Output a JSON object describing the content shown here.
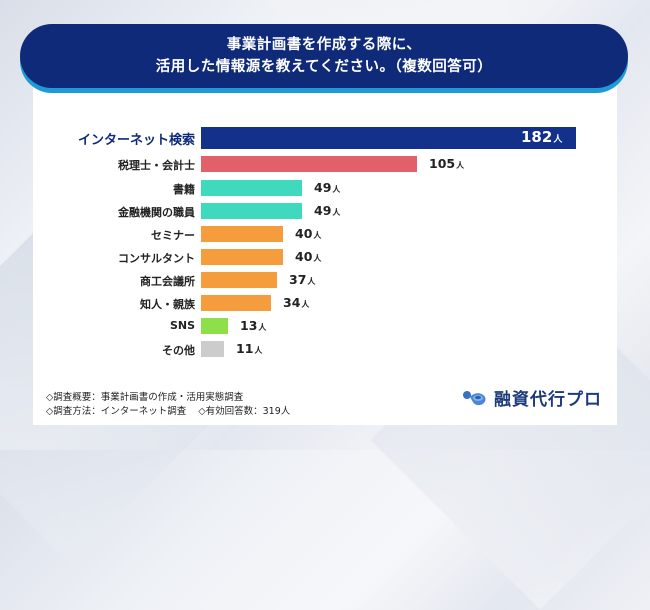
{
  "header": {
    "line1": "事業計画書を作成する際に、",
    "line2": "活用した情報源を教えてください。（複数回答可）"
  },
  "chart_data": {
    "type": "bar",
    "orientation": "horizontal",
    "title": "事業計画書を作成する際に、活用した情報源を教えてください。（複数回答可）",
    "categories": [
      "インターネット検索",
      "税理士・会計士",
      "書籍",
      "金融機関の職員",
      "セミナー",
      "コンサルタント",
      "商工会議所",
      "知人・親族",
      "SNS",
      "その他"
    ],
    "values": [
      182,
      105,
      49,
      49,
      40,
      40,
      37,
      34,
      13,
      11
    ],
    "unit": "人",
    "colors": [
      "#13318a",
      "#e2606a",
      "#3fd9bd",
      "#3fd9bd",
      "#f59c3c",
      "#f59c3c",
      "#f59c3c",
      "#f59c3c",
      "#8ee04a",
      "#cccccc"
    ],
    "xlabel": "",
    "ylabel": "",
    "grid": false,
    "legend": "none"
  },
  "rows": [
    {
      "label": "インターネット検索",
      "value": "182",
      "unit": "人",
      "color": "#13318a"
    },
    {
      "label": "税理士・会計士",
      "value": "105",
      "unit": "人",
      "color": "#e2606a"
    },
    {
      "label": "書籍",
      "value": "49",
      "unit": "人",
      "color": "#3fd9bd"
    },
    {
      "label": "金融機関の職員",
      "value": "49",
      "unit": "人",
      "color": "#3fd9bd"
    },
    {
      "label": "セミナー",
      "value": "40",
      "unit": "人",
      "color": "#f59c3c"
    },
    {
      "label": "コンサルタント",
      "value": "40",
      "unit": "人",
      "color": "#f59c3c"
    },
    {
      "label": "商工会議所",
      "value": "37",
      "unit": "人",
      "color": "#f59c3c"
    },
    {
      "label": "知人・親族",
      "value": "34",
      "unit": "人",
      "color": "#f59c3c"
    },
    {
      "label": "SNS",
      "value": "13",
      "unit": "人",
      "color": "#8ee04a"
    },
    {
      "label": "その他",
      "value": "11",
      "unit": "人",
      "color": "#cccccc"
    }
  ],
  "notes": {
    "summary": "◇調査概要：事業計画書の作成・活用実態調査",
    "method": "◇調査方法：インターネット調査",
    "respondents": "◇有効回答数：319人"
  },
  "logo": {
    "text": "融資代行プロ",
    "icon": "coin-wave-icon"
  },
  "colors": {
    "header_bg": "#0f2a78",
    "header_accent": "#1e9ad6"
  }
}
